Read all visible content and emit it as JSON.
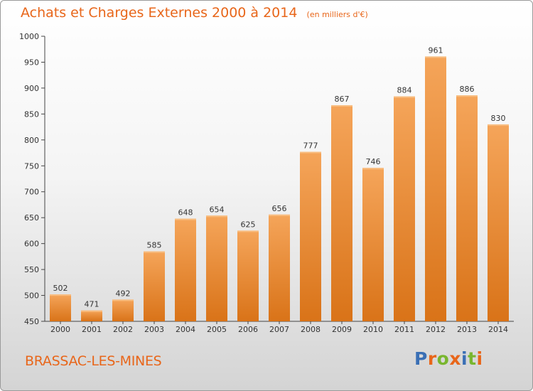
{
  "header": {
    "title": "Achats et Charges Externes 2000 à 2014",
    "subtitle": "(en milliers d'€)"
  },
  "footer": {
    "commune": "BRASSAC-LES-MINES",
    "logo": [
      "P",
      "r",
      "o",
      "x",
      "i",
      "t",
      "i"
    ],
    "logo_colors": [
      "#3a6fb5",
      "#e8661a",
      "#79b62f",
      "#e8661a",
      "#3a6fb5",
      "#79b62f",
      "#e8661a"
    ]
  },
  "colors": {
    "bar_top": "#F5A55A",
    "bar_bottom": "#D97318",
    "accent": "#E8661A"
  },
  "chart_data": {
    "type": "bar",
    "title": "Achats et Charges Externes 2000 à 2014",
    "subtitle": "(en milliers d'€)",
    "categories": [
      "2000",
      "2001",
      "2002",
      "2003",
      "2004",
      "2005",
      "2006",
      "2007",
      "2008",
      "2009",
      "2010",
      "2011",
      "2012",
      "2013",
      "2014"
    ],
    "values": [
      502,
      471,
      492,
      585,
      648,
      654,
      625,
      656,
      777,
      867,
      746,
      884,
      961,
      886,
      830
    ],
    "ylim": [
      450,
      1000
    ],
    "yticks": [
      450,
      500,
      550,
      600,
      650,
      700,
      750,
      800,
      850,
      900,
      950,
      1000
    ],
    "grid": false,
    "xlabel": "",
    "ylabel": ""
  }
}
